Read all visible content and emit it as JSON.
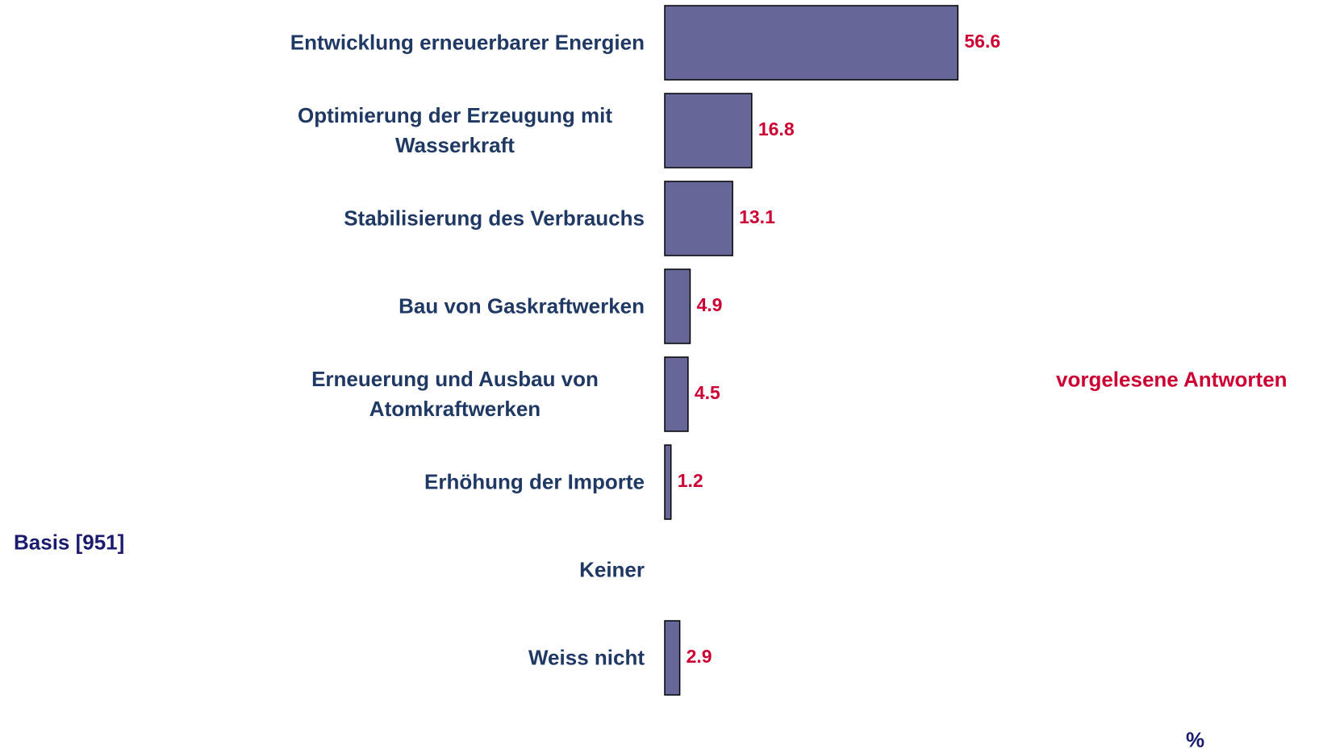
{
  "chart_data": {
    "type": "bar",
    "orientation": "horizontal",
    "categories": [
      "Entwicklung erneuerbarer Energien",
      "Optimierung der Erzeugung mit Wasserkraft",
      "Stabilisierung des Verbrauchs",
      "Bau von Gaskraftwerken",
      "Erneuerung und Ausbau von Atomkraftwerken",
      "Erhöhung der Importe",
      "Keiner",
      "Weiss nicht"
    ],
    "values": [
      56.6,
      16.8,
      13.1,
      4.9,
      4.5,
      1.2,
      null,
      2.9
    ],
    "color": "#666699",
    "xlim": [
      0,
      100
    ],
    "x_label": "%",
    "annotations": [
      "vorgelesene Antworten",
      "Basis [951]"
    ]
  }
}
